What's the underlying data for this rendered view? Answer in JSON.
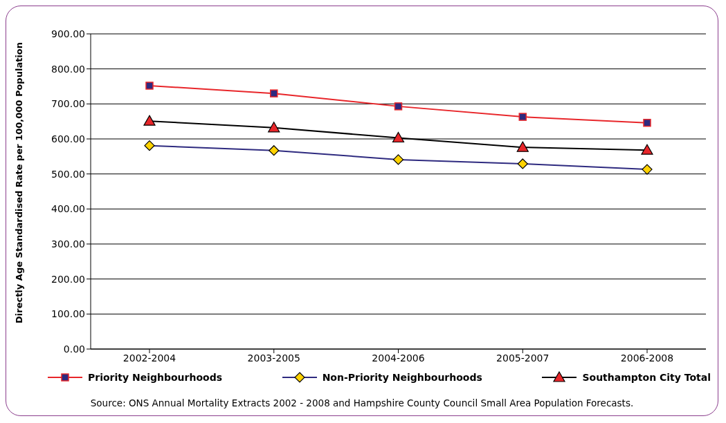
{
  "chart_data": {
    "type": "line",
    "ylabel": "Directly Age Standardised Rate per 100,000 Population",
    "categories": [
      "2002-2004",
      "2003-2005",
      "2004-2006",
      "2005-2007",
      "2006-2008"
    ],
    "series": [
      {
        "name": "Priority Neighbourhoods",
        "color": "#e8262a",
        "marker": "square",
        "values": [
          752,
          730,
          693,
          663,
          646
        ]
      },
      {
        "name": "Non-Priority Neighbourhoods",
        "color": "#2e2a7f",
        "marker": "diamond",
        "values": [
          581,
          567,
          541,
          529,
          513
        ]
      },
      {
        "name": "Southampton City Total",
        "color": "#000000",
        "marker": "triangle",
        "values": [
          651,
          632,
          603,
          576,
          568
        ]
      }
    ],
    "ylim": [
      0,
      900
    ],
    "yticks": [
      {
        "value": 0,
        "label": "0.00"
      },
      {
        "value": 100,
        "label": "100.00"
      },
      {
        "value": 200,
        "label": "200.00"
      },
      {
        "value": 300,
        "label": "300.00"
      },
      {
        "value": 400,
        "label": "400.00"
      },
      {
        "value": 500,
        "label": "500.00"
      },
      {
        "value": 600,
        "label": "600.00"
      },
      {
        "value": 700,
        "label": "700.00"
      },
      {
        "value": 800,
        "label": "800.00"
      },
      {
        "value": 900,
        "label": "900.00"
      }
    ],
    "grid": "y",
    "legend": "bottom",
    "annotations": [
      "Source: ONS Annual Mortality Extracts 2002 - 2008 and Hampshire County Council Small Area Population Forecasts."
    ]
  }
}
